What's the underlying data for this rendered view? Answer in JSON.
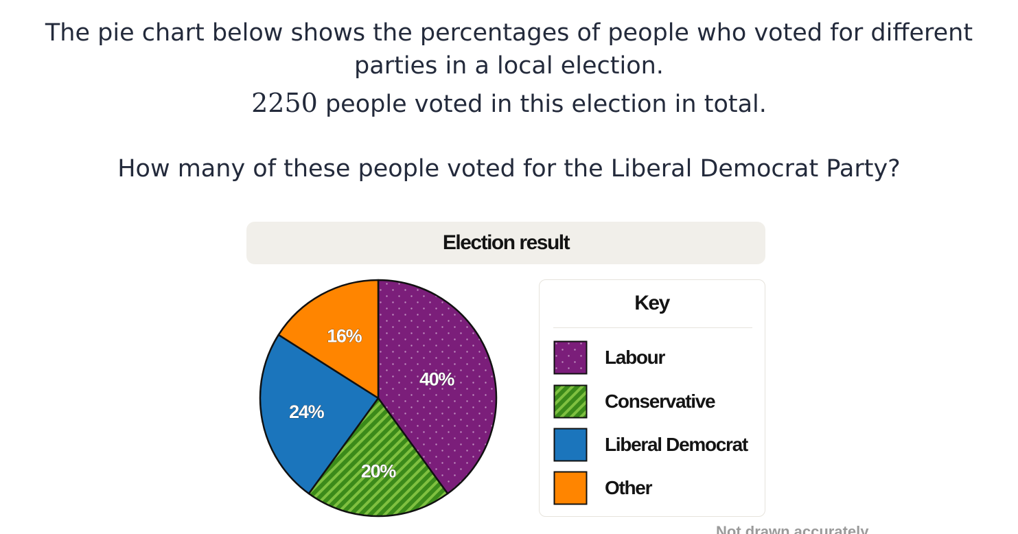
{
  "question": {
    "line1": "The pie chart below shows the percentages of people who voted for different",
    "line2": "parties in a local election.",
    "total_number": "2250",
    "line3_rest": " people voted in this election in total.",
    "line4": "How many of these people voted for the Liberal Democrat Party?"
  },
  "chart_data": {
    "type": "pie",
    "title": "Election result",
    "legend_title": "Key",
    "legend_position": "right",
    "slices": [
      {
        "name": "Labour",
        "value": 40,
        "label": "40%",
        "color": "#7b1e7a",
        "pattern": "dots"
      },
      {
        "name": "Conservative",
        "value": 20,
        "label": "20%",
        "color": "#3b8a1a",
        "pattern": "stripes"
      },
      {
        "name": "Liberal Democrat",
        "value": 24,
        "label": "24%",
        "color": "#1b75bc",
        "pattern": "none"
      },
      {
        "name": "Other",
        "value": 16,
        "label": "16%",
        "color": "#ff8500",
        "pattern": "none"
      }
    ]
  },
  "footnote": "Not drawn accurately"
}
